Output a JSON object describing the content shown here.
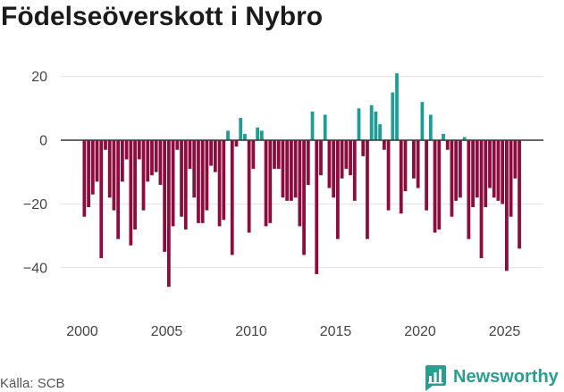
{
  "chart_data": {
    "type": "bar",
    "title": "Födelseöverskott i Nybro",
    "x": [
      2000,
      2000.25,
      2000.5,
      2000.75,
      2001,
      2001.25,
      2001.5,
      2001.75,
      2002,
      2002.25,
      2002.5,
      2002.75,
      2003,
      2003.25,
      2003.5,
      2003.75,
      2004,
      2004.25,
      2004.5,
      2004.75,
      2005,
      2005.25,
      2005.5,
      2005.75,
      2006,
      2006.25,
      2006.5,
      2006.75,
      2007,
      2007.25,
      2007.5,
      2007.75,
      2008,
      2008.25,
      2008.5,
      2008.75,
      2009,
      2009.25,
      2009.5,
      2009.75,
      2010,
      2010.25,
      2010.5,
      2010.75,
      2011,
      2011.25,
      2011.5,
      2011.75,
      2012,
      2012.25,
      2012.5,
      2012.75,
      2013,
      2013.25,
      2013.5,
      2013.75,
      2014,
      2014.25,
      2014.5,
      2014.75,
      2015,
      2015.25,
      2015.5,
      2015.75,
      2016,
      2016.25,
      2016.5,
      2016.75,
      2017,
      2017.25,
      2017.5,
      2017.75,
      2018,
      2018.25,
      2018.5,
      2018.75,
      2019,
      2019.25,
      2019.5,
      2019.75,
      2020,
      2020.25,
      2020.5,
      2020.75,
      2021,
      2021.25,
      2021.5,
      2021.75,
      2022,
      2022.25,
      2022.5,
      2022.75,
      2023,
      2023.25,
      2023.5,
      2023.75,
      2024,
      2024.25,
      2024.5,
      2024.75,
      2025,
      2025.25,
      2025.5,
      2025.75
    ],
    "values": [
      -24,
      -21,
      -17,
      -13,
      -37,
      -3,
      -18,
      -22,
      -31,
      -13,
      -6,
      -33,
      -28,
      -6,
      -22,
      -13,
      -11,
      -10,
      -14,
      -35,
      -46,
      -27,
      -3,
      -24,
      -28,
      -9,
      -18,
      -26,
      -26,
      -22,
      -8,
      -10,
      -27,
      -25,
      3,
      -36,
      -2,
      7,
      2,
      -29,
      -9,
      4,
      3,
      -27,
      -26,
      -9,
      -9,
      -18,
      -19,
      -19,
      -18,
      -27,
      -36,
      -14,
      9,
      -42,
      -11,
      8,
      -15,
      -18,
      -31,
      -12,
      -9,
      -11,
      -19,
      10,
      -5,
      -31,
      11,
      9,
      5,
      -3,
      -22,
      15,
      21,
      -23,
      -16,
      0,
      -12,
      -15,
      12,
      -22,
      8,
      -29,
      -28,
      2,
      -3,
      -24,
      -19,
      -18,
      1,
      -31,
      -21,
      -18,
      -37,
      -21,
      -15,
      -18,
      -19,
      -20,
      -41,
      -24,
      -12,
      -34
    ],
    "xlim": [
      1998.73,
      2027.3
    ],
    "ylim": [
      -50,
      25
    ],
    "xticks": [
      {
        "value": 2000,
        "label": "2000"
      },
      {
        "value": 2005,
        "label": "2005"
      },
      {
        "value": 2010,
        "label": "2010"
      },
      {
        "value": 2015,
        "label": "2015"
      },
      {
        "value": 2020,
        "label": "2020"
      },
      {
        "value": 2025,
        "label": "2025"
      }
    ],
    "yticks": [
      {
        "value": 20,
        "label": "20"
      },
      {
        "value": 0,
        "label": "0"
      },
      {
        "value": -20,
        "label": "−20"
      },
      {
        "value": -40,
        "label": "−40"
      }
    ],
    "grid": true,
    "legend": "none"
  },
  "source": "Källa: SCB",
  "logo": {
    "text": "Newsworthy",
    "icon": "newsworthy-chart-icon"
  },
  "colors": {
    "negative_bar": "#8e0c3d",
    "positive_bar": "#1f9d94",
    "zero_line": "#333333",
    "grid": "#e2e2e2",
    "brand": "#2a9d91"
  }
}
